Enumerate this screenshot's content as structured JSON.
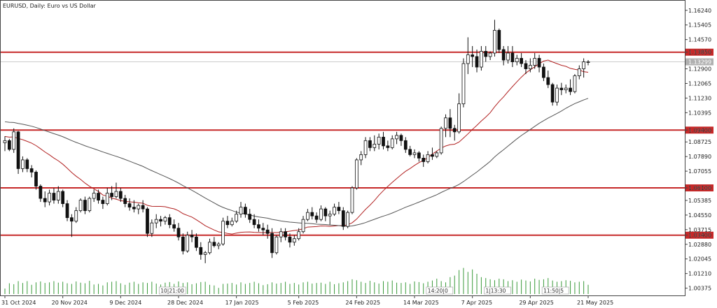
{
  "chart_title": "EURUSD, Daily:  Euro vs US Dollar",
  "chart_data": {
    "type": "candlestick",
    "symbol": "EURUSD",
    "timeframe": "Daily",
    "description": "Euro vs US Dollar",
    "x_range": [
      "2024-10-31",
      "2025-05-21"
    ],
    "ylim": [
      0.9996,
      1.1679
    ],
    "y_ticks": [
      1.1624,
      1.15405,
      1.1457,
      1.1385,
      1.129,
      1.12065,
      1.1123,
      1.10395,
      1.094,
      1.08725,
      1.0789,
      1.07055,
      1.061,
      1.05385,
      1.0455,
      1.03715,
      1.034,
      1.0288,
      1.02045,
      1.0121,
      1.00375
    ],
    "y_tick_labels": [
      "1.16240",
      "1.15405",
      "1.14570",
      "1.13850",
      "1.12900",
      "1.12065",
      "1.11230",
      "1.10395",
      "1.09400",
      "1.08725",
      "1.07890",
      "1.07055",
      "1.06100",
      "1.05385",
      "1.04550",
      "1.03715",
      "1.03400",
      "1.02880",
      "1.02045",
      "1.01210",
      "1.00375"
    ],
    "x_tick_labels": [
      "31 Oct 2024",
      "20 Nov 2024",
      "9 Dec 2024",
      "28 Dec 2024",
      "17 Jan 2025",
      "5 Feb 2025",
      "24 Feb 2025",
      "14 Mar 2025",
      "7 Apr 2025",
      "29 Apr 2025",
      "21 May 2025"
    ],
    "horizontal_levels": [
      {
        "label": "1.13850",
        "value": 1.1385
      },
      {
        "label": "1.09400",
        "value": 1.094
      },
      {
        "label": "1.06100",
        "value": 1.061
      },
      {
        "label": "1.03400",
        "value": 1.034
      }
    ],
    "current_price": {
      "label": "1.13299",
      "value": 1.133
    },
    "volume_labels": [
      "10|21:00",
      "14:20|0",
      "1|13:30",
      "11:50|5"
    ],
    "moving_averages": [
      {
        "color": "#b22222"
      },
      {
        "color": "#555555"
      }
    ],
    "candles": [
      {
        "o": 1.0868,
        "h": 1.0905,
        "l": 1.082,
        "c": 1.088
      },
      {
        "o": 1.088,
        "h": 1.089,
        "l": 1.082,
        "c": 1.083
      },
      {
        "o": 1.083,
        "h": 1.095,
        "l": 1.081,
        "c": 1.093
      },
      {
        "o": 1.093,
        "h": 1.0935,
        "l": 1.069,
        "c": 1.072
      },
      {
        "o": 1.072,
        "h": 1.079,
        "l": 1.07,
        "c": 1.077
      },
      {
        "o": 1.077,
        "h": 1.078,
        "l": 1.07,
        "c": 1.072
      },
      {
        "o": 1.072,
        "h": 1.074,
        "l": 1.067,
        "c": 1.07
      },
      {
        "o": 1.07,
        "h": 1.071,
        "l": 1.06,
        "c": 1.062
      },
      {
        "o": 1.062,
        "h": 1.063,
        "l": 1.053,
        "c": 1.055
      },
      {
        "o": 1.055,
        "h": 1.059,
        "l": 1.05,
        "c": 1.053
      },
      {
        "o": 1.053,
        "h": 1.06,
        "l": 1.051,
        "c": 1.058
      },
      {
        "o": 1.058,
        "h": 1.061,
        "l": 1.052,
        "c": 1.054
      },
      {
        "o": 1.054,
        "h": 1.062,
        "l": 1.052,
        "c": 1.059
      },
      {
        "o": 1.059,
        "h": 1.06,
        "l": 1.05,
        "c": 1.052
      },
      {
        "o": 1.052,
        "h": 1.054,
        "l": 1.042,
        "c": 1.044
      },
      {
        "o": 1.044,
        "h": 1.046,
        "l": 1.033,
        "c": 1.042
      },
      {
        "o": 1.042,
        "h": 1.05,
        "l": 1.041,
        "c": 1.048
      },
      {
        "o": 1.048,
        "h": 1.055,
        "l": 1.047,
        "c": 1.054
      },
      {
        "o": 1.054,
        "h": 1.056,
        "l": 1.046,
        "c": 1.048
      },
      {
        "o": 1.048,
        "h": 1.056,
        "l": 1.047,
        "c": 1.055
      },
      {
        "o": 1.055,
        "h": 1.06,
        "l": 1.053,
        "c": 1.058
      },
      {
        "o": 1.058,
        "h": 1.06,
        "l": 1.052,
        "c": 1.054
      },
      {
        "o": 1.054,
        "h": 1.056,
        "l": 1.049,
        "c": 1.052
      },
      {
        "o": 1.052,
        "h": 1.061,
        "l": 1.051,
        "c": 1.058
      },
      {
        "o": 1.058,
        "h": 1.062,
        "l": 1.054,
        "c": 1.056
      },
      {
        "o": 1.056,
        "h": 1.064,
        "l": 1.055,
        "c": 1.059
      },
      {
        "o": 1.059,
        "h": 1.061,
        "l": 1.053,
        "c": 1.055
      },
      {
        "o": 1.055,
        "h": 1.057,
        "l": 1.05,
        "c": 1.052
      },
      {
        "o": 1.052,
        "h": 1.055,
        "l": 1.048,
        "c": 1.05
      },
      {
        "o": 1.05,
        "h": 1.054,
        "l": 1.047,
        "c": 1.049
      },
      {
        "o": 1.049,
        "h": 1.052,
        "l": 1.046,
        "c": 1.051
      },
      {
        "o": 1.051,
        "h": 1.054,
        "l": 1.047,
        "c": 1.049
      },
      {
        "o": 1.049,
        "h": 1.05,
        "l": 1.033,
        "c": 1.035
      },
      {
        "o": 1.035,
        "h": 1.043,
        "l": 1.033,
        "c": 1.041
      },
      {
        "o": 1.041,
        "h": 1.046,
        "l": 1.038,
        "c": 1.043
      },
      {
        "o": 1.043,
        "h": 1.045,
        "l": 1.039,
        "c": 1.042
      },
      {
        "o": 1.042,
        "h": 1.045,
        "l": 1.04,
        "c": 1.044
      },
      {
        "o": 1.044,
        "h": 1.046,
        "l": 1.038,
        "c": 1.04
      },
      {
        "o": 1.04,
        "h": 1.043,
        "l": 1.036,
        "c": 1.038
      },
      {
        "o": 1.038,
        "h": 1.041,
        "l": 1.031,
        "c": 1.033
      },
      {
        "o": 1.033,
        "h": 1.035,
        "l": 1.023,
        "c": 1.025
      },
      {
        "o": 1.025,
        "h": 1.036,
        "l": 1.024,
        "c": 1.034
      },
      {
        "o": 1.034,
        "h": 1.037,
        "l": 1.03,
        "c": 1.033
      },
      {
        "o": 1.033,
        "h": 1.035,
        "l": 1.025,
        "c": 1.027
      },
      {
        "o": 1.027,
        "h": 1.03,
        "l": 1.02,
        "c": 1.023
      },
      {
        "o": 1.023,
        "h": 1.025,
        "l": 1.018,
        "c": 1.024
      },
      {
        "o": 1.024,
        "h": 1.032,
        "l": 1.023,
        "c": 1.03
      },
      {
        "o": 1.03,
        "h": 1.033,
        "l": 1.027,
        "c": 1.028
      },
      {
        "o": 1.028,
        "h": 1.03,
        "l": 1.026,
        "c": 1.029
      },
      {
        "o": 1.029,
        "h": 1.044,
        "l": 1.028,
        "c": 1.042
      },
      {
        "o": 1.042,
        "h": 1.045,
        "l": 1.038,
        "c": 1.04
      },
      {
        "o": 1.04,
        "h": 1.044,
        "l": 1.039,
        "c": 1.042
      },
      {
        "o": 1.042,
        "h": 1.048,
        "l": 1.041,
        "c": 1.046
      },
      {
        "o": 1.046,
        "h": 1.053,
        "l": 1.044,
        "c": 1.05
      },
      {
        "o": 1.05,
        "h": 1.052,
        "l": 1.044,
        "c": 1.046
      },
      {
        "o": 1.046,
        "h": 1.049,
        "l": 1.041,
        "c": 1.043
      },
      {
        "o": 1.043,
        "h": 1.046,
        "l": 1.038,
        "c": 1.04
      },
      {
        "o": 1.04,
        "h": 1.043,
        "l": 1.036,
        "c": 1.038
      },
      {
        "o": 1.038,
        "h": 1.041,
        "l": 1.034,
        "c": 1.037
      },
      {
        "o": 1.037,
        "h": 1.04,
        "l": 1.032,
        "c": 1.035
      },
      {
        "o": 1.035,
        "h": 1.038,
        "l": 1.021,
        "c": 1.024
      },
      {
        "o": 1.024,
        "h": 1.034,
        "l": 1.023,
        "c": 1.033
      },
      {
        "o": 1.033,
        "h": 1.038,
        "l": 1.03,
        "c": 1.036
      },
      {
        "o": 1.036,
        "h": 1.038,
        "l": 1.031,
        "c": 1.033
      },
      {
        "o": 1.033,
        "h": 1.035,
        "l": 1.027,
        "c": 1.03
      },
      {
        "o": 1.03,
        "h": 1.034,
        "l": 1.028,
        "c": 1.032
      },
      {
        "o": 1.032,
        "h": 1.038,
        "l": 1.031,
        "c": 1.036
      },
      {
        "o": 1.036,
        "h": 1.045,
        "l": 1.035,
        "c": 1.043
      },
      {
        "o": 1.043,
        "h": 1.049,
        "l": 1.042,
        "c": 1.047
      },
      {
        "o": 1.047,
        "h": 1.05,
        "l": 1.043,
        "c": 1.045
      },
      {
        "o": 1.045,
        "h": 1.047,
        "l": 1.041,
        "c": 1.043
      },
      {
        "o": 1.043,
        "h": 1.051,
        "l": 1.042,
        "c": 1.049
      },
      {
        "o": 1.049,
        "h": 1.05,
        "l": 1.042,
        "c": 1.045
      },
      {
        "o": 1.045,
        "h": 1.048,
        "l": 1.04,
        "c": 1.046
      },
      {
        "o": 1.046,
        "h": 1.052,
        "l": 1.045,
        "c": 1.05
      },
      {
        "o": 1.05,
        "h": 1.053,
        "l": 1.046,
        "c": 1.048
      },
      {
        "o": 1.048,
        "h": 1.05,
        "l": 1.037,
        "c": 1.039
      },
      {
        "o": 1.039,
        "h": 1.048,
        "l": 1.038,
        "c": 1.047
      },
      {
        "o": 1.047,
        "h": 1.062,
        "l": 1.046,
        "c": 1.061
      },
      {
        "o": 1.061,
        "h": 1.078,
        "l": 1.06,
        "c": 1.077
      },
      {
        "o": 1.077,
        "h": 1.082,
        "l": 1.074,
        "c": 1.08
      },
      {
        "o": 1.08,
        "h": 1.09,
        "l": 1.078,
        "c": 1.088
      },
      {
        "o": 1.088,
        "h": 1.09,
        "l": 1.082,
        "c": 1.084
      },
      {
        "o": 1.084,
        "h": 1.091,
        "l": 1.082,
        "c": 1.086
      },
      {
        "o": 1.086,
        "h": 1.092,
        "l": 1.083,
        "c": 1.09
      },
      {
        "o": 1.09,
        "h": 1.093,
        "l": 1.083,
        "c": 1.085
      },
      {
        "o": 1.085,
        "h": 1.088,
        "l": 1.082,
        "c": 1.084
      },
      {
        "o": 1.084,
        "h": 1.091,
        "l": 1.083,
        "c": 1.089
      },
      {
        "o": 1.089,
        "h": 1.093,
        "l": 1.086,
        "c": 1.091
      },
      {
        "o": 1.091,
        "h": 1.092,
        "l": 1.085,
        "c": 1.088
      },
      {
        "o": 1.088,
        "h": 1.09,
        "l": 1.081,
        "c": 1.083
      },
      {
        "o": 1.083,
        "h": 1.085,
        "l": 1.079,
        "c": 1.08
      },
      {
        "o": 1.08,
        "h": 1.083,
        "l": 1.078,
        "c": 1.081
      },
      {
        "o": 1.081,
        "h": 1.082,
        "l": 1.076,
        "c": 1.078
      },
      {
        "o": 1.078,
        "h": 1.08,
        "l": 1.073,
        "c": 1.076
      },
      {
        "o": 1.076,
        "h": 1.082,
        "l": 1.075,
        "c": 1.08
      },
      {
        "o": 1.08,
        "h": 1.084,
        "l": 1.077,
        "c": 1.079
      },
      {
        "o": 1.079,
        "h": 1.082,
        "l": 1.078,
        "c": 1.081
      },
      {
        "o": 1.081,
        "h": 1.096,
        "l": 1.08,
        "c": 1.095
      },
      {
        "o": 1.095,
        "h": 1.103,
        "l": 1.09,
        "c": 1.101
      },
      {
        "o": 1.101,
        "h": 1.106,
        "l": 1.09,
        "c": 1.095
      },
      {
        "o": 1.095,
        "h": 1.097,
        "l": 1.088,
        "c": 1.093
      },
      {
        "o": 1.093,
        "h": 1.115,
        "l": 1.092,
        "c": 1.109
      },
      {
        "o": 1.109,
        "h": 1.135,
        "l": 1.107,
        "c": 1.132
      },
      {
        "o": 1.132,
        "h": 1.147,
        "l": 1.126,
        "c": 1.137
      },
      {
        "o": 1.137,
        "h": 1.142,
        "l": 1.13,
        "c": 1.136
      },
      {
        "o": 1.136,
        "h": 1.14,
        "l": 1.127,
        "c": 1.13
      },
      {
        "o": 1.13,
        "h": 1.142,
        "l": 1.128,
        "c": 1.139
      },
      {
        "o": 1.139,
        "h": 1.142,
        "l": 1.133,
        "c": 1.136
      },
      {
        "o": 1.136,
        "h": 1.139,
        "l": 1.134,
        "c": 1.138
      },
      {
        "o": 1.138,
        "h": 1.157,
        "l": 1.136,
        "c": 1.151
      },
      {
        "o": 1.151,
        "h": 1.152,
        "l": 1.138,
        "c": 1.14
      },
      {
        "o": 1.14,
        "h": 1.142,
        "l": 1.131,
        "c": 1.134
      },
      {
        "o": 1.134,
        "h": 1.142,
        "l": 1.132,
        "c": 1.138
      },
      {
        "o": 1.138,
        "h": 1.142,
        "l": 1.13,
        "c": 1.133
      },
      {
        "o": 1.133,
        "h": 1.137,
        "l": 1.131,
        "c": 1.135
      },
      {
        "o": 1.135,
        "h": 1.138,
        "l": 1.13,
        "c": 1.132
      },
      {
        "o": 1.132,
        "h": 1.134,
        "l": 1.126,
        "c": 1.129
      },
      {
        "o": 1.129,
        "h": 1.135,
        "l": 1.127,
        "c": 1.131
      },
      {
        "o": 1.131,
        "h": 1.138,
        "l": 1.129,
        "c": 1.135
      },
      {
        "o": 1.135,
        "h": 1.137,
        "l": 1.127,
        "c": 1.13
      },
      {
        "o": 1.13,
        "h": 1.132,
        "l": 1.122,
        "c": 1.124
      },
      {
        "o": 1.124,
        "h": 1.128,
        "l": 1.118,
        "c": 1.12
      },
      {
        "o": 1.12,
        "h": 1.121,
        "l": 1.108,
        "c": 1.11
      },
      {
        "o": 1.11,
        "h": 1.12,
        "l": 1.108,
        "c": 1.118
      },
      {
        "o": 1.118,
        "h": 1.121,
        "l": 1.114,
        "c": 1.117
      },
      {
        "o": 1.117,
        "h": 1.12,
        "l": 1.115,
        "c": 1.118
      },
      {
        "o": 1.118,
        "h": 1.123,
        "l": 1.114,
        "c": 1.116
      },
      {
        "o": 1.116,
        "h": 1.126,
        "l": 1.115,
        "c": 1.125
      },
      {
        "o": 1.125,
        "h": 1.131,
        "l": 1.123,
        "c": 1.129
      },
      {
        "o": 1.129,
        "h": 1.135,
        "l": 1.124,
        "c": 1.133
      },
      {
        "o": 1.133,
        "h": 1.134,
        "l": 1.131,
        "c": 1.133
      }
    ],
    "volumes": [
      0.18,
      0.35,
      0.32,
      0.42,
      0.36,
      0.42,
      0.3,
      0.38,
      0.41,
      0.36,
      0.38,
      0.42,
      0.37,
      0.4,
      0.35,
      0.33,
      0.41,
      0.37,
      0.35,
      0.43,
      0.31,
      0.33,
      0.28,
      0.38,
      0.4,
      0.42,
      0.35,
      0.3,
      0.37,
      0.4,
      0.33,
      0.38,
      0.36,
      0.4,
      0.34,
      0.31,
      0.37,
      0.39,
      0.33,
      0.41,
      0.36,
      0.38,
      0.32,
      0.35,
      0.39,
      0.4,
      0.3,
      0.28,
      0.2,
      0.33,
      0.34,
      0.36,
      0.31,
      0.38,
      0.33,
      0.36,
      0.4,
      0.35,
      0.29,
      0.32,
      0.38,
      0.34,
      0.36,
      0.4,
      0.33,
      0.36,
      0.31,
      0.38,
      0.4,
      0.34,
      0.36,
      0.37,
      0.33,
      0.4,
      0.32,
      0.35,
      0.38,
      0.42,
      0.48,
      0.45,
      0.4,
      0.36,
      0.43,
      0.38,
      0.34,
      0.42,
      0.4,
      0.44,
      0.37,
      0.36,
      0.38,
      0.33,
      0.41,
      0.39,
      0.35,
      0.4,
      0.44,
      0.5,
      0.42,
      0.38,
      0.55,
      0.6,
      0.78,
      0.85,
      0.72,
      0.8,
      0.66,
      0.55,
      0.52,
      0.48,
      0.45,
      0.5,
      0.48,
      0.42,
      0.45,
      0.4,
      0.47,
      0.44,
      0.41,
      0.5,
      0.46,
      0.48,
      0.52,
      0.44,
      0.4,
      0.42,
      0.45,
      0.43,
      0.38,
      0.4,
      0.42,
      0.3
    ]
  }
}
